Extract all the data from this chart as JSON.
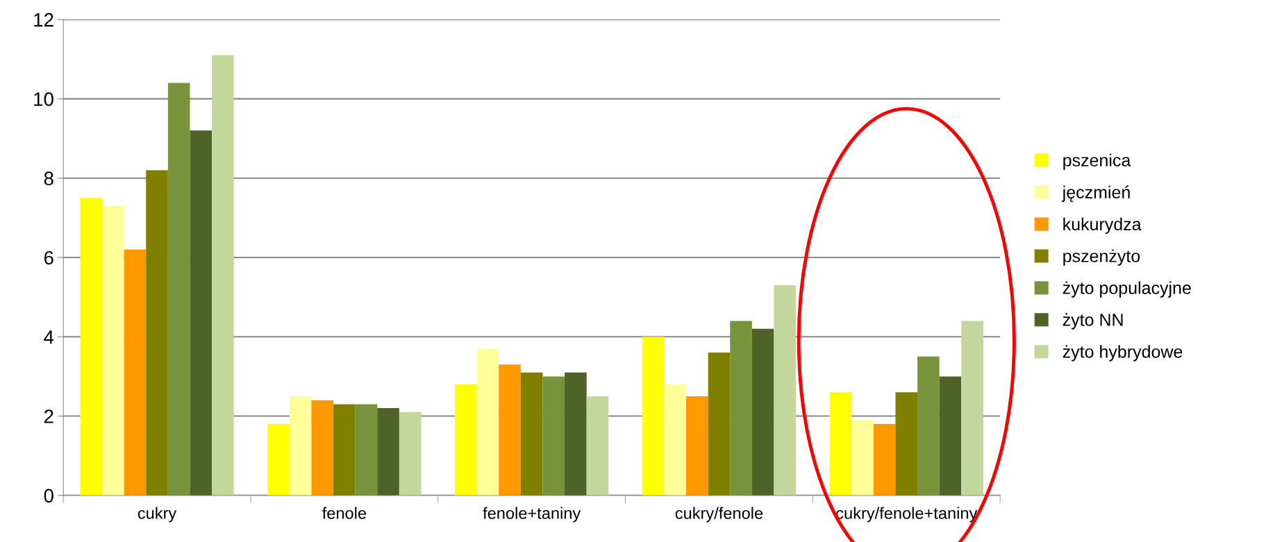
{
  "chart_data": {
    "type": "bar",
    "categories": [
      "cukry",
      "fenole",
      "fenole+taniny",
      "cukry/fenole",
      "cukry/fenole+taniny"
    ],
    "series": [
      {
        "name": "pszenica",
        "color": "#ffff00",
        "values": [
          7.5,
          1.8,
          2.8,
          4.0,
          2.6
        ]
      },
      {
        "name": "jęczmień",
        "color": "#ffff99",
        "values": [
          7.3,
          2.5,
          3.7,
          2.8,
          1.9
        ]
      },
      {
        "name": "kukurydza",
        "color": "#ff9900",
        "values": [
          6.2,
          2.4,
          3.3,
          2.5,
          1.8
        ]
      },
      {
        "name": "pszenżyto",
        "color": "#808000",
        "values": [
          8.2,
          2.3,
          3.1,
          3.6,
          2.6
        ]
      },
      {
        "name": "żyto populacyjne",
        "color": "#77933c",
        "values": [
          10.4,
          2.3,
          3.0,
          4.4,
          3.5
        ]
      },
      {
        "name": "żyto NN",
        "color": "#4f6228",
        "values": [
          9.2,
          2.2,
          3.1,
          4.2,
          3.0
        ]
      },
      {
        "name": "żyto hybrydowe",
        "color": "#c3d69b",
        "values": [
          11.1,
          2.1,
          2.5,
          5.3,
          4.4
        ]
      }
    ],
    "ylim": [
      0,
      12
    ],
    "yticks": [
      0,
      2,
      4,
      6,
      8,
      10,
      12
    ],
    "grid": "y",
    "legend": "right"
  }
}
